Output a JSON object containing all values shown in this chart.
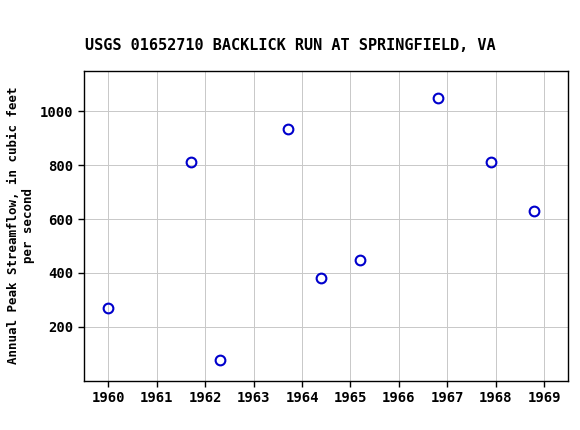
{
  "title": "USGS 01652710 BACKLICK RUN AT SPRINGFIELD, VA",
  "xlabel": "",
  "ylabel": "Annual Peak Streamflow, in cubic feet\nper second",
  "years": [
    1960.0,
    1961.7,
    1962.3,
    1963.7,
    1964.4,
    1965.2,
    1966.8,
    1967.9,
    1968.8
  ],
  "flows": [
    270,
    810,
    75,
    935,
    380,
    448,
    1050,
    810,
    630
  ],
  "xlim": [
    1959.5,
    1969.5
  ],
  "ylim": [
    0,
    1150
  ],
  "xticks": [
    1960,
    1961,
    1962,
    1963,
    1964,
    1965,
    1966,
    1967,
    1968,
    1969
  ],
  "yticks": [
    200,
    400,
    600,
    800,
    1000
  ],
  "marker_color": "#0000cc",
  "marker_size": 7,
  "grid_color": "#c8c8c8",
  "background_color": "#ffffff",
  "header_color": "#1a6b3c",
  "title_fontsize": 11,
  "axis_fontsize": 9,
  "tick_fontsize": 10
}
